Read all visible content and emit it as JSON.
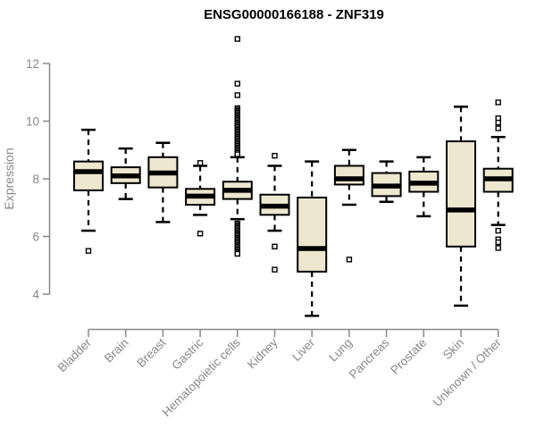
{
  "chart_data": {
    "type": "boxplot",
    "title": "ENSG00000166188 - ZNF319",
    "ylabel": "Expression",
    "xlabel": "",
    "ylim": [
      3.0,
      13.0
    ],
    "yticks": [
      4,
      6,
      8,
      10,
      12
    ],
    "grid": false,
    "legend": "none",
    "box_fill_color": "#ede7cf",
    "axis_color": "#888888",
    "median_color": "#000000",
    "categories": [
      "Bladder",
      "Brain",
      "Breast",
      "Gastric",
      "Hematopoietic cells",
      "Kidney",
      "Liver",
      "Lung",
      "Pancreas",
      "Prostate",
      "Skin",
      "Unknown / Other"
    ],
    "boxes": [
      {
        "category": "Bladder",
        "whisker_low": 6.2,
        "q1": 7.6,
        "median": 8.25,
        "q3": 8.6,
        "whisker_high": 9.7,
        "outliers": [
          5.5
        ]
      },
      {
        "category": "Brain",
        "whisker_low": 7.3,
        "q1": 7.85,
        "median": 8.1,
        "q3": 8.4,
        "whisker_high": 9.05,
        "outliers": []
      },
      {
        "category": "Breast",
        "whisker_low": 6.5,
        "q1": 7.7,
        "median": 8.2,
        "q3": 8.75,
        "whisker_high": 9.25,
        "outliers": []
      },
      {
        "category": "Gastric",
        "whisker_low": 6.75,
        "q1": 7.1,
        "median": 7.4,
        "q3": 7.65,
        "whisker_high": 8.45,
        "outliers": [
          8.55,
          6.1
        ]
      },
      {
        "category": "Hematopoietic cells",
        "whisker_low": 6.6,
        "q1": 7.3,
        "median": 7.6,
        "q3": 7.9,
        "whisker_high": 8.75,
        "outliers": [
          12.85,
          11.3,
          10.9,
          10.45,
          10.4,
          10.35,
          10.3,
          10.25,
          10.2,
          10.15,
          10.1,
          10.05,
          10.0,
          9.95,
          9.9,
          9.85,
          9.8,
          9.75,
          9.7,
          9.65,
          9.6,
          9.55,
          9.5,
          9.45,
          9.4,
          9.35,
          9.3,
          9.25,
          9.2,
          9.15,
          9.1,
          9.05,
          9.0,
          8.95,
          8.9,
          8.85,
          6.45,
          6.4,
          6.35,
          6.3,
          6.25,
          6.2,
          6.15,
          6.1,
          6.05,
          6.0,
          5.95,
          5.9,
          5.85,
          5.8,
          5.75,
          5.7,
          5.65,
          5.6,
          5.55,
          5.5,
          5.45,
          5.4
        ]
      },
      {
        "category": "Kidney",
        "whisker_low": 6.2,
        "q1": 6.75,
        "median": 7.05,
        "q3": 7.45,
        "whisker_high": 8.45,
        "outliers": [
          8.8,
          5.65,
          4.85
        ]
      },
      {
        "category": "Liver",
        "whisker_low": 3.25,
        "q1": 4.78,
        "median": 5.58,
        "q3": 7.35,
        "whisker_high": 8.6,
        "outliers": []
      },
      {
        "category": "Lung",
        "whisker_low": 7.1,
        "q1": 7.8,
        "median": 8.0,
        "q3": 8.45,
        "whisker_high": 9.0,
        "outliers": [
          5.2
        ]
      },
      {
        "category": "Pancreas",
        "whisker_low": 7.2,
        "q1": 7.4,
        "median": 7.75,
        "q3": 8.2,
        "whisker_high": 8.6,
        "outliers": []
      },
      {
        "category": "Prostate",
        "whisker_low": 6.7,
        "q1": 7.55,
        "median": 7.85,
        "q3": 8.25,
        "whisker_high": 8.75,
        "outliers": []
      },
      {
        "category": "Skin",
        "whisker_low": 3.6,
        "q1": 5.65,
        "median": 6.92,
        "q3": 9.3,
        "whisker_high": 10.5,
        "outliers": []
      },
      {
        "category": "Unknown / Other",
        "whisker_low": 6.4,
        "q1": 7.55,
        "median": 8.0,
        "q3": 8.35,
        "whisker_high": 9.45,
        "outliers": [
          10.65,
          10.1,
          9.95,
          9.75,
          6.2,
          5.9,
          5.8,
          5.6
        ]
      }
    ]
  }
}
